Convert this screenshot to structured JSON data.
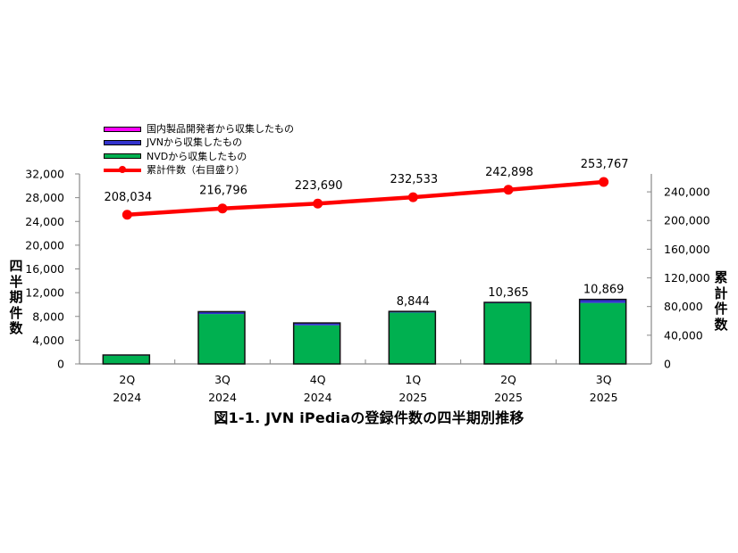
{
  "chart_data": {
    "type": "bar",
    "subtype": "stacked bar + line (secondary axis)",
    "title": "図1-1. JVN iPediaの登録件数の四半期別推移",
    "categories": [
      "2Q\n2024",
      "3Q\n2024",
      "4Q\n2024",
      "1Q\n2025",
      "2Q\n2025",
      "3Q\n2025"
    ],
    "category_lines": [
      [
        "2Q",
        "2024"
      ],
      [
        "3Q",
        "2024"
      ],
      [
        "4Q",
        "2024"
      ],
      [
        "1Q",
        "2025"
      ],
      [
        "2Q",
        "2025"
      ],
      [
        "3Q",
        "2025"
      ]
    ],
    "series": [
      {
        "name": "NVDから収集したもの",
        "type": "bar",
        "axis": "left",
        "color": "#00b050",
        "values": [
          1400,
          8400,
          6500,
          8650,
          10220,
          10270
        ]
      },
      {
        "name": "JVNから収集したもの",
        "type": "bar",
        "axis": "left",
        "color": "#3333cc",
        "values": [
          100,
          400,
          400,
          194,
          145,
          599
        ]
      },
      {
        "name": "国内製品開発者から収集したもの",
        "type": "bar",
        "axis": "left",
        "color": "#ff00ff",
        "values": [
          0,
          0,
          0,
          0,
          0,
          0
        ]
      },
      {
        "name": "累計件数（右目盛り）",
        "type": "line",
        "axis": "right",
        "color": "#ff0000",
        "values": [
          208034,
          216796,
          223690,
          232533,
          242898,
          253767
        ]
      }
    ],
    "bar_totals": [
      1500,
      8800,
      6900,
      8844,
      10365,
      10869
    ],
    "bar_total_labels": [
      "",
      "",
      "",
      "8,844",
      "10,365",
      "10,869"
    ],
    "line_labels": [
      "208,034",
      "216,796",
      "223,690",
      "232,533",
      "242,898",
      "253,767"
    ],
    "ylabel": "四半期件数",
    "ylabel_right": "累計件数",
    "xlabel": "",
    "ylim": [
      0,
      32000
    ],
    "ylim_right": [
      0,
      265000
    ],
    "yticks": [
      0,
      4000,
      8000,
      12000,
      16000,
      20000,
      24000,
      28000,
      32000
    ],
    "ytick_labels": [
      "0",
      "4,000",
      "8,000",
      "12,000",
      "16,000",
      "20,000",
      "24,000",
      "28,000",
      "32,000"
    ],
    "yticks_right": [
      0,
      40000,
      80000,
      120000,
      160000,
      200000,
      240000
    ],
    "ytick_labels_right": [
      "0",
      "40,000",
      "80,000",
      "120,000",
      "160,000",
      "200,000",
      "240,000"
    ],
    "grid": false,
    "legend_position": "top-left"
  },
  "legend": {
    "items": [
      {
        "label": "国内製品開発者から収集したもの",
        "color": "#ff00ff",
        "kind": "bar"
      },
      {
        "label": "JVNから収集したもの",
        "color": "#3333cc",
        "kind": "bar"
      },
      {
        "label": "NVDから収集したもの",
        "color": "#00b050",
        "kind": "bar"
      },
      {
        "label": "累計件数（右目盛り）",
        "color": "#ff0000",
        "kind": "line"
      }
    ]
  },
  "axes": {
    "left_title_chars": [
      "四",
      "半",
      "期",
      "件",
      "数"
    ],
    "right_title_chars": [
      "累",
      "計",
      "件",
      "数"
    ]
  },
  "caption": "図1-1. JVN iPediaの登録件数の四半期別推移"
}
